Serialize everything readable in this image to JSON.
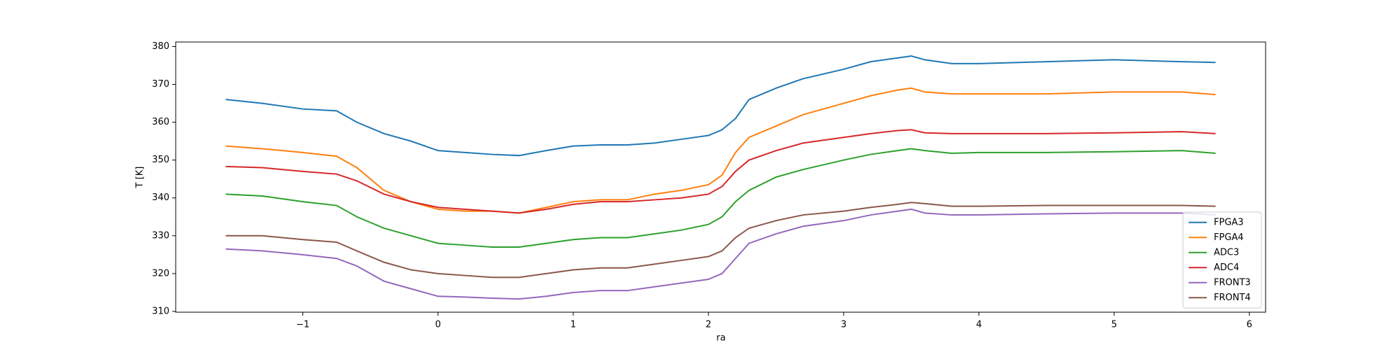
{
  "chart_data": {
    "type": "line",
    "xlabel": "ra",
    "ylabel": "T [K]",
    "x": [
      -1.57,
      -1.3,
      -1.0,
      -0.75,
      -0.6,
      -0.4,
      -0.2,
      0,
      0.2,
      0.4,
      0.6,
      0.8,
      1.0,
      1.2,
      1.4,
      1.6,
      1.8,
      2.0,
      2.1,
      2.2,
      2.3,
      2.5,
      2.7,
      3.0,
      3.2,
      3.4,
      3.5,
      3.6,
      3.8,
      4.0,
      4.5,
      5.0,
      5.5,
      5.75
    ],
    "series": [
      {
        "name": "FPGA3",
        "color": "#1f77b4",
        "values": [
          366,
          365,
          363.5,
          363,
          360,
          357,
          355,
          352.5,
          352,
          351.5,
          351.2,
          352.5,
          353.7,
          354,
          354,
          354.5,
          355.5,
          356.5,
          358,
          361,
          366,
          369,
          371.5,
          374,
          376,
          377,
          377.5,
          376.5,
          375.5,
          375.5,
          376,
          376.5,
          376,
          375.8
        ]
      },
      {
        "name": "FPGA4",
        "color": "#ff7f0e",
        "values": [
          353.7,
          353,
          352,
          351,
          348,
          342,
          339,
          337,
          336.5,
          336.5,
          336,
          337.5,
          339,
          339.5,
          339.5,
          341,
          342,
          343.5,
          346,
          352,
          356,
          359,
          362,
          365,
          367,
          368.5,
          369,
          368,
          367.5,
          367.5,
          367.5,
          368,
          368,
          367.3
        ]
      },
      {
        "name": "ADC3",
        "color": "#2ca02c",
        "values": [
          341,
          340.5,
          339,
          338,
          335,
          332,
          330,
          328,
          327.5,
          327,
          327,
          328,
          329,
          329.5,
          329.5,
          330.5,
          331.5,
          333,
          335,
          339,
          342,
          345.5,
          347.5,
          350,
          351.5,
          352.5,
          353,
          352.5,
          351.8,
          352,
          352,
          352.2,
          352.5,
          351.8
        ]
      },
      {
        "name": "ADC4",
        "color": "#d62728",
        "values": [
          348.3,
          348,
          347,
          346.3,
          344.5,
          341,
          339,
          337.5,
          337,
          336.5,
          336,
          337,
          338.3,
          339,
          339,
          339.5,
          340,
          341,
          343,
          347,
          350,
          352.5,
          354.5,
          356,
          357,
          357.8,
          358,
          357.2,
          357,
          357,
          357,
          357.2,
          357.5,
          357
        ]
      },
      {
        "name": "FRONT3",
        "color": "#9467bd",
        "values": [
          326.5,
          326,
          325,
          324,
          322,
          318,
          316,
          314,
          313.8,
          313.5,
          313.3,
          314,
          315,
          315.5,
          315.5,
          316.5,
          317.5,
          318.5,
          320,
          324,
          328,
          330.5,
          332.5,
          334,
          335.5,
          336.5,
          337,
          336,
          335.5,
          335.5,
          335.8,
          336,
          336,
          335.5
        ]
      },
      {
        "name": "FRONT4",
        "color": "#8c564b",
        "values": [
          330,
          330,
          329,
          328.3,
          326,
          323,
          321,
          320,
          319.5,
          319,
          319,
          320,
          321,
          321.5,
          321.5,
          322.5,
          323.5,
          324.5,
          326,
          329.5,
          332,
          334,
          335.5,
          336.5,
          337.5,
          338.3,
          338.8,
          338.5,
          337.8,
          337.8,
          338,
          338,
          338,
          337.8
        ]
      }
    ],
    "xlim": [
      -1.94,
      6.12
    ],
    "ylim": [
      309.8,
      381.2
    ],
    "xticks": [
      {
        "value": -1,
        "label": "−1"
      },
      0,
      1,
      2,
      3,
      4,
      5,
      6
    ],
    "yticks": [
      310,
      320,
      330,
      340,
      350,
      360,
      370,
      380
    ],
    "legend": "lower right",
    "grid": false
  }
}
